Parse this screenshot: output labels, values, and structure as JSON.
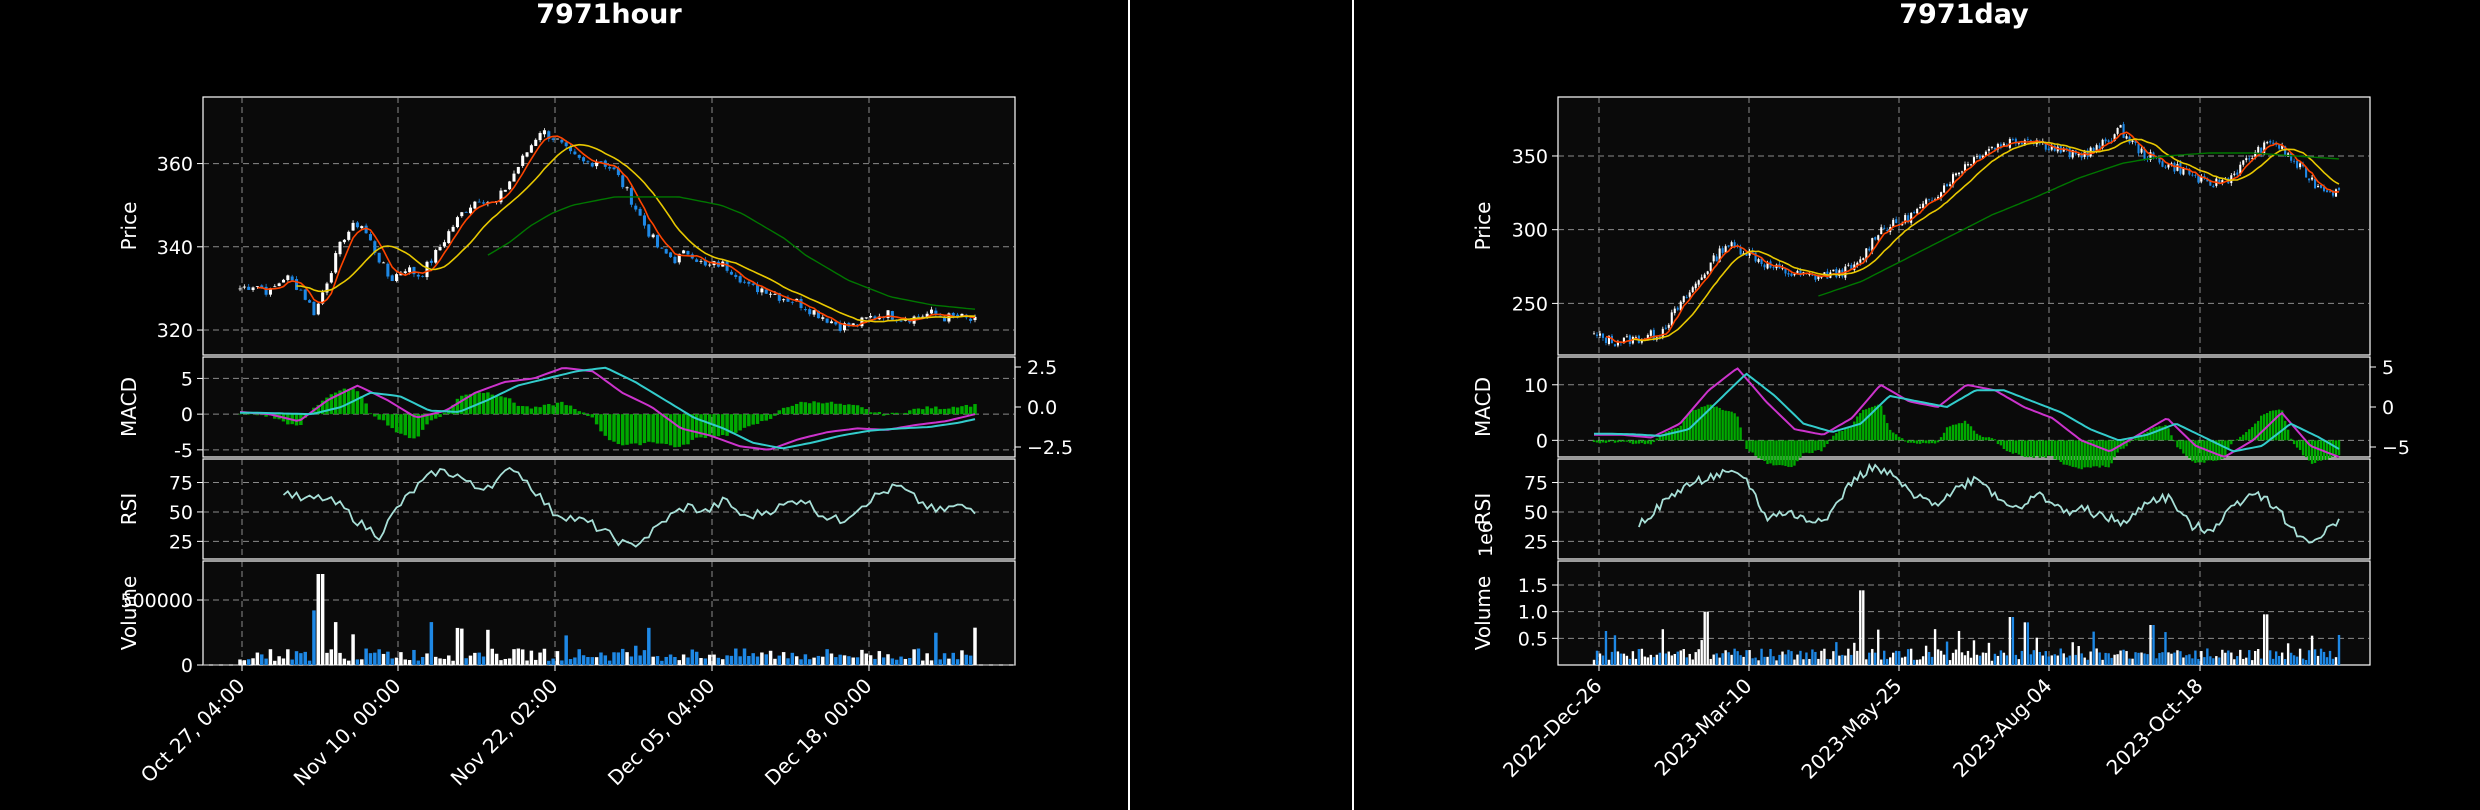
{
  "chart_data": [
    {
      "type": "candlestick",
      "title": "7971hour",
      "panels": [
        "Price",
        "MACD",
        "RSI",
        "Volume"
      ],
      "price": {
        "ylabel": "Price",
        "ylim": [
          314,
          376
        ],
        "yticks": [
          "320",
          "340",
          "360"
        ],
        "ytick_values": [
          320,
          340,
          360
        ],
        "close_profile": [
          330,
          331,
          329,
          333,
          330,
          324,
          334,
          343,
          346,
          339,
          332,
          335,
          333,
          338,
          344,
          349,
          352,
          350,
          356,
          362,
          368,
          366,
          362,
          360,
          361,
          358,
          352,
          345,
          339,
          337,
          339,
          335,
          336,
          334,
          330,
          330,
          328,
          327,
          325,
          323,
          321,
          321,
          323,
          324,
          323,
          323,
          324,
          323,
          323,
          322
        ],
        "sma_long_profile": [
          338,
          341,
          345,
          348,
          350,
          351,
          352,
          352,
          352,
          352,
          351,
          350,
          348,
          345,
          342,
          338,
          335,
          332,
          330,
          328,
          327,
          326,
          325.5,
          325
        ],
        "sma_long_start": 0.34
      },
      "macd": {
        "ylabel": "MACD",
        "ylim": [
          -6,
          8
        ],
        "yticks": [
          "-5",
          "0",
          "5"
        ],
        "ytick_values": [
          -5,
          0,
          5
        ],
        "yticks_right": [
          "2.5",
          "0.0",
          "−2.5"
        ],
        "ytick_right_values": [
          2.5,
          0,
          -2.5
        ],
        "macd_profile": [
          0.3,
          0,
          -1,
          2,
          4,
          2,
          -0.5,
          0.5,
          3,
          4.5,
          5,
          6.5,
          6,
          3,
          1,
          -2,
          -3,
          -4.5,
          -5,
          -3.5,
          -2.5,
          -2,
          -2.2,
          -1.5,
          -1,
          0
        ],
        "signal_profile": [
          0.2,
          0.1,
          0,
          1,
          3,
          2.5,
          0.5,
          0.3,
          2,
          4,
          5,
          6,
          6.5,
          4.5,
          2,
          -0.5,
          -2,
          -4,
          -4.8,
          -4,
          -3,
          -2.3,
          -2,
          -1.8,
          -1.2,
          -0.3
        ]
      },
      "rsi": {
        "ylabel": "RSI",
        "ylim": [
          10,
          95
        ],
        "yticks": [
          "25",
          "50",
          "75"
        ],
        "ytick_values": [
          25,
          50,
          75
        ],
        "start": 0.06,
        "profile": [
          68,
          60,
          62,
          55,
          40,
          30,
          55,
          72,
          85,
          82,
          70,
          75,
          88,
          70,
          50,
          45,
          40,
          30,
          20,
          30,
          45,
          55,
          50,
          60,
          45,
          50,
          55,
          62,
          48,
          42,
          55,
          65,
          72,
          60,
          50,
          55,
          52
        ]
      },
      "volume": {
        "ylabel": "Volume",
        "ylim": [
          0,
          800000
        ],
        "yticks": [
          "0",
          "500000"
        ],
        "ytick_values": [
          0,
          500000
        ],
        "spikes": [
          [
            0.1,
            420000
          ],
          [
            0.11,
            700000
          ],
          [
            0.13,
            330000
          ],
          [
            0.26,
            330000
          ],
          [
            0.3,
            280000
          ]
        ]
      },
      "x_ticks": [
        "Oct 27, 04:00",
        "Nov 10, 00:00",
        "Nov 22, 02:00",
        "Dec 05, 04:00",
        "Dec 18, 00:00"
      ],
      "n_bars": 170
    },
    {
      "type": "candlestick",
      "title": "7971day",
      "panels": [
        "Price",
        "MACD",
        "RSI",
        "Volume"
      ],
      "price": {
        "ylabel": "Price",
        "ylim": [
          215,
          390
        ],
        "yticks": [
          "250",
          "300",
          "350"
        ],
        "ytick_values": [
          250,
          300,
          350
        ],
        "close_profile": [
          228,
          224,
          226,
          230,
          250,
          270,
          290,
          285,
          275,
          270,
          268,
          270,
          275,
          300,
          305,
          315,
          330,
          345,
          355,
          360,
          362,
          355,
          350,
          355,
          368,
          352,
          345,
          340,
          330,
          335,
          350,
          360,
          345,
          330,
          325
        ],
        "sma_long_profile": [
          255,
          265,
          280,
          295,
          310,
          322,
          335,
          345,
          350,
          352,
          352,
          350,
          348
        ],
        "sma_long_start": 0.3
      },
      "macd": {
        "ylabel": "MACD",
        "ylim": [
          -3,
          15
        ],
        "yticks": [
          "0",
          "10"
        ],
        "ytick_values": [
          0,
          10
        ],
        "yticks_right": [
          "5",
          "0",
          "−5"
        ],
        "ytick_right_values": [
          5,
          0,
          -5
        ],
        "macd_profile": [
          1,
          1,
          0.5,
          3,
          9,
          13,
          7,
          2,
          1,
          4,
          10,
          7,
          6,
          10,
          9,
          6,
          4,
          0,
          -2,
          1,
          4,
          -1,
          -3,
          0,
          5,
          -1,
          -3
        ],
        "signal_profile": [
          1.2,
          1.1,
          0.8,
          2,
          7,
          12,
          8,
          3,
          1.5,
          3,
          8,
          7,
          6,
          9,
          9,
          7,
          5,
          2,
          0,
          1,
          3,
          0.5,
          -2,
          -1,
          3,
          0.5,
          -2.5
        ]
      },
      "rsi": {
        "ylabel": "RSI",
        "ylim": [
          10,
          95
        ],
        "yticks": [
          "25",
          "50",
          "75"
        ],
        "ytick_values": [
          25,
          50,
          75
        ],
        "start": 0.06,
        "profile": [
          40,
          55,
          70,
          78,
          82,
          80,
          45,
          50,
          42,
          48,
          75,
          88,
          80,
          62,
          58,
          70,
          80,
          60,
          55,
          65,
          50,
          52,
          45,
          40,
          60,
          62,
          38,
          35,
          55,
          68,
          55,
          30,
          25,
          45
        ]
      },
      "volume": {
        "ylabel": "Volume",
        "scale_label": "1e6",
        "ylim": [
          0,
          1.95
        ],
        "yticks": [
          "0.5",
          "1.0",
          "1.5"
        ],
        "ytick_values": [
          0.5,
          1.0,
          1.5
        ],
        "spikes": [
          [
            0.15,
            1.0
          ],
          [
            0.36,
            1.85
          ],
          [
            0.361,
            1.4
          ],
          [
            0.56,
            0.9
          ],
          [
            0.58,
            0.8
          ],
          [
            0.75,
            0.75
          ],
          [
            0.9,
            0.95
          ]
        ]
      },
      "x_ticks": [
        "2022-Dec-26",
        "2023-Mar-10",
        "2023-May-25",
        "2023-Aug-04",
        "2023-Oct-18"
      ],
      "n_bars": 250
    }
  ],
  "colors": {
    "up": "#ffffff",
    "down": "#1e88e5",
    "macd_line": "#cc33cc",
    "signal_line": "#33cccc",
    "histogram": "#00aa00",
    "sma_short": "#ff4400",
    "sma_mid": "#e8c800",
    "sma_long": "#007700",
    "rsi_line": "#a8e0d8",
    "axes_bg": "#0a0a0a",
    "grid": "#aaaaaa"
  }
}
